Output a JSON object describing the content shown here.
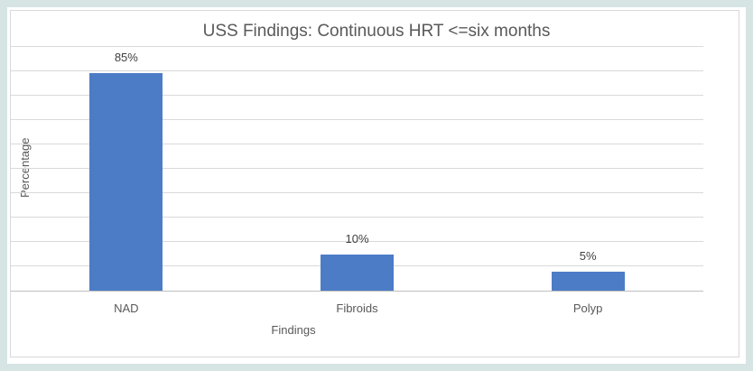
{
  "chart_data": {
    "type": "bar",
    "title": "USS Findings: Continuous HRT <=six months",
    "xlabel": "Findings",
    "ylabel": "Percentage",
    "categories": [
      "NAD",
      "Fibroids",
      "Polyp"
    ],
    "values": [
      85,
      10,
      5
    ],
    "data_labels": [
      "85%",
      "10%",
      "5%"
    ],
    "ylim": [
      0,
      100
    ],
    "gridline_interval": 10,
    "gridlines_on": true,
    "y_tick_labels_visible": false,
    "legend_position": "none",
    "bar_height_fraction_of_plot": [
      0.893,
      0.148,
      0.078
    ],
    "colors": {
      "bar_fill": "#4d7cc7",
      "background_border": "#d6e4e3",
      "chart_background": "#ffffff",
      "chart_border": "#d9d9d9",
      "gridline": "#d9d9d9",
      "axis_line": "#bfbfbf",
      "title_text": "#595959",
      "label_text": "#404040",
      "axis_text": "#595959"
    }
  }
}
